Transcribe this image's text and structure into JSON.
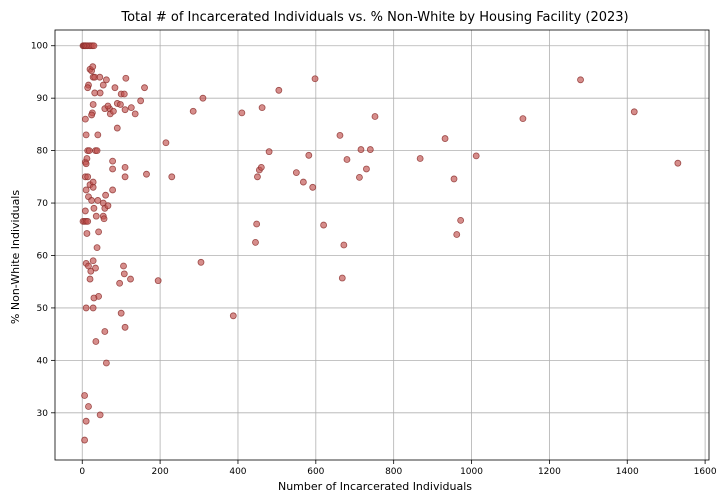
{
  "chart_data": {
    "type": "scatter",
    "title": "Total # of Incarcerated Individuals vs. % Non-White by Housing Facility (2023)",
    "xlabel": "Number of Incarcerated Individuals",
    "ylabel": "% Non-White Individuals",
    "xlim": [
      -70,
      1610
    ],
    "ylim": [
      21,
      103
    ],
    "xticks": [
      0,
      200,
      400,
      600,
      800,
      1000,
      1200,
      1400,
      1600
    ],
    "yticks": [
      30,
      40,
      50,
      60,
      70,
      80,
      90,
      100
    ],
    "grid": true,
    "marker_color": "#c0504d",
    "marker_edge": "#8b2e2c",
    "points": [
      [
        2,
        100
      ],
      [
        4,
        100
      ],
      [
        6,
        100
      ],
      [
        8,
        100
      ],
      [
        10,
        100
      ],
      [
        14,
        100
      ],
      [
        18,
        100
      ],
      [
        22,
        100
      ],
      [
        26,
        100
      ],
      [
        30,
        100
      ],
      [
        20,
        95.5
      ],
      [
        24,
        95.2
      ],
      [
        27,
        96
      ],
      [
        16,
        92.5
      ],
      [
        14,
        92
      ],
      [
        28,
        94
      ],
      [
        32,
        94
      ],
      [
        45,
        94
      ],
      [
        32,
        91
      ],
      [
        46,
        91
      ],
      [
        54,
        92.5
      ],
      [
        62,
        93.5
      ],
      [
        70,
        88
      ],
      [
        84,
        92
      ],
      [
        90,
        89
      ],
      [
        100,
        90.8
      ],
      [
        108,
        90.8
      ],
      [
        112,
        93.8
      ],
      [
        58,
        88
      ],
      [
        66,
        88.5
      ],
      [
        28,
        88.8
      ],
      [
        26,
        87.2
      ],
      [
        24,
        86.8
      ],
      [
        72,
        87
      ],
      [
        80,
        87.5
      ],
      [
        98,
        88.8
      ],
      [
        110,
        87.8
      ],
      [
        126,
        88.2
      ],
      [
        136,
        87
      ],
      [
        150,
        89.5
      ],
      [
        160,
        92
      ],
      [
        8,
        86
      ],
      [
        10,
        83
      ],
      [
        40,
        83
      ],
      [
        90,
        84.3
      ],
      [
        14,
        80
      ],
      [
        18,
        80
      ],
      [
        34,
        80
      ],
      [
        38,
        80
      ],
      [
        8,
        77.8
      ],
      [
        12,
        78.5
      ],
      [
        10,
        77.5
      ],
      [
        78,
        78
      ],
      [
        110,
        76.8
      ],
      [
        78,
        76.5
      ],
      [
        8,
        75
      ],
      [
        14,
        75
      ],
      [
        20,
        73.5
      ],
      [
        28,
        74
      ],
      [
        10,
        72.5
      ],
      [
        28,
        73
      ],
      [
        78,
        72.5
      ],
      [
        110,
        75
      ],
      [
        165,
        75.5
      ],
      [
        16,
        71.2
      ],
      [
        24,
        70.5
      ],
      [
        40,
        70.5
      ],
      [
        60,
        71.5
      ],
      [
        30,
        69
      ],
      [
        54,
        70
      ],
      [
        58,
        69
      ],
      [
        8,
        68.5
      ],
      [
        54,
        67.5
      ],
      [
        66,
        69.5
      ],
      [
        36,
        67.5
      ],
      [
        56,
        67
      ],
      [
        2,
        66.5
      ],
      [
        6,
        66.5
      ],
      [
        10,
        66.5
      ],
      [
        14,
        66.5
      ],
      [
        12,
        64.2
      ],
      [
        42,
        64.5
      ],
      [
        38,
        61.5
      ],
      [
        10,
        58.5
      ],
      [
        16,
        58
      ],
      [
        22,
        57
      ],
      [
        28,
        59
      ],
      [
        34,
        57.6
      ],
      [
        106,
        58
      ],
      [
        108,
        56.5
      ],
      [
        20,
        55.5
      ],
      [
        124,
        55.5
      ],
      [
        96,
        54.7
      ],
      [
        42,
        52.2
      ],
      [
        30,
        51.9
      ],
      [
        10,
        50
      ],
      [
        28,
        50
      ],
      [
        100,
        49
      ],
      [
        110,
        46.3
      ],
      [
        58,
        45.5
      ],
      [
        35,
        43.6
      ],
      [
        62,
        39.5
      ],
      [
        6,
        33.3
      ],
      [
        16,
        31.2
      ],
      [
        10,
        28.4
      ],
      [
        46,
        29.6
      ],
      [
        6,
        24.8
      ],
      [
        215,
        81.5
      ],
      [
        230,
        75
      ],
      [
        195,
        55.2
      ],
      [
        285,
        87.5
      ],
      [
        310,
        90
      ],
      [
        305,
        58.7
      ],
      [
        410,
        87.2
      ],
      [
        450,
        75
      ],
      [
        455,
        76.3
      ],
      [
        460,
        76.8
      ],
      [
        462,
        88.2
      ],
      [
        480,
        79.8
      ],
      [
        448,
        66
      ],
      [
        445,
        62.5
      ],
      [
        388,
        48.5
      ],
      [
        505,
        91.5
      ],
      [
        550,
        75.8
      ],
      [
        568,
        74
      ],
      [
        582,
        79.1
      ],
      [
        592,
        73
      ],
      [
        598,
        93.7
      ],
      [
        620,
        65.8
      ],
      [
        662,
        82.9
      ],
      [
        680,
        78.3
      ],
      [
        672,
        62
      ],
      [
        668,
        55.7
      ],
      [
        712,
        74.9
      ],
      [
        716,
        80.2
      ],
      [
        730,
        76.5
      ],
      [
        740,
        80.2
      ],
      [
        752,
        86.5
      ],
      [
        868,
        78.5
      ],
      [
        932,
        82.3
      ],
      [
        955,
        74.6
      ],
      [
        962,
        64
      ],
      [
        972,
        66.7
      ],
      [
        1012,
        79
      ],
      [
        1132,
        86.1
      ],
      [
        1280,
        93.5
      ],
      [
        1418,
        87.4
      ],
      [
        1530,
        77.6
      ]
    ]
  }
}
